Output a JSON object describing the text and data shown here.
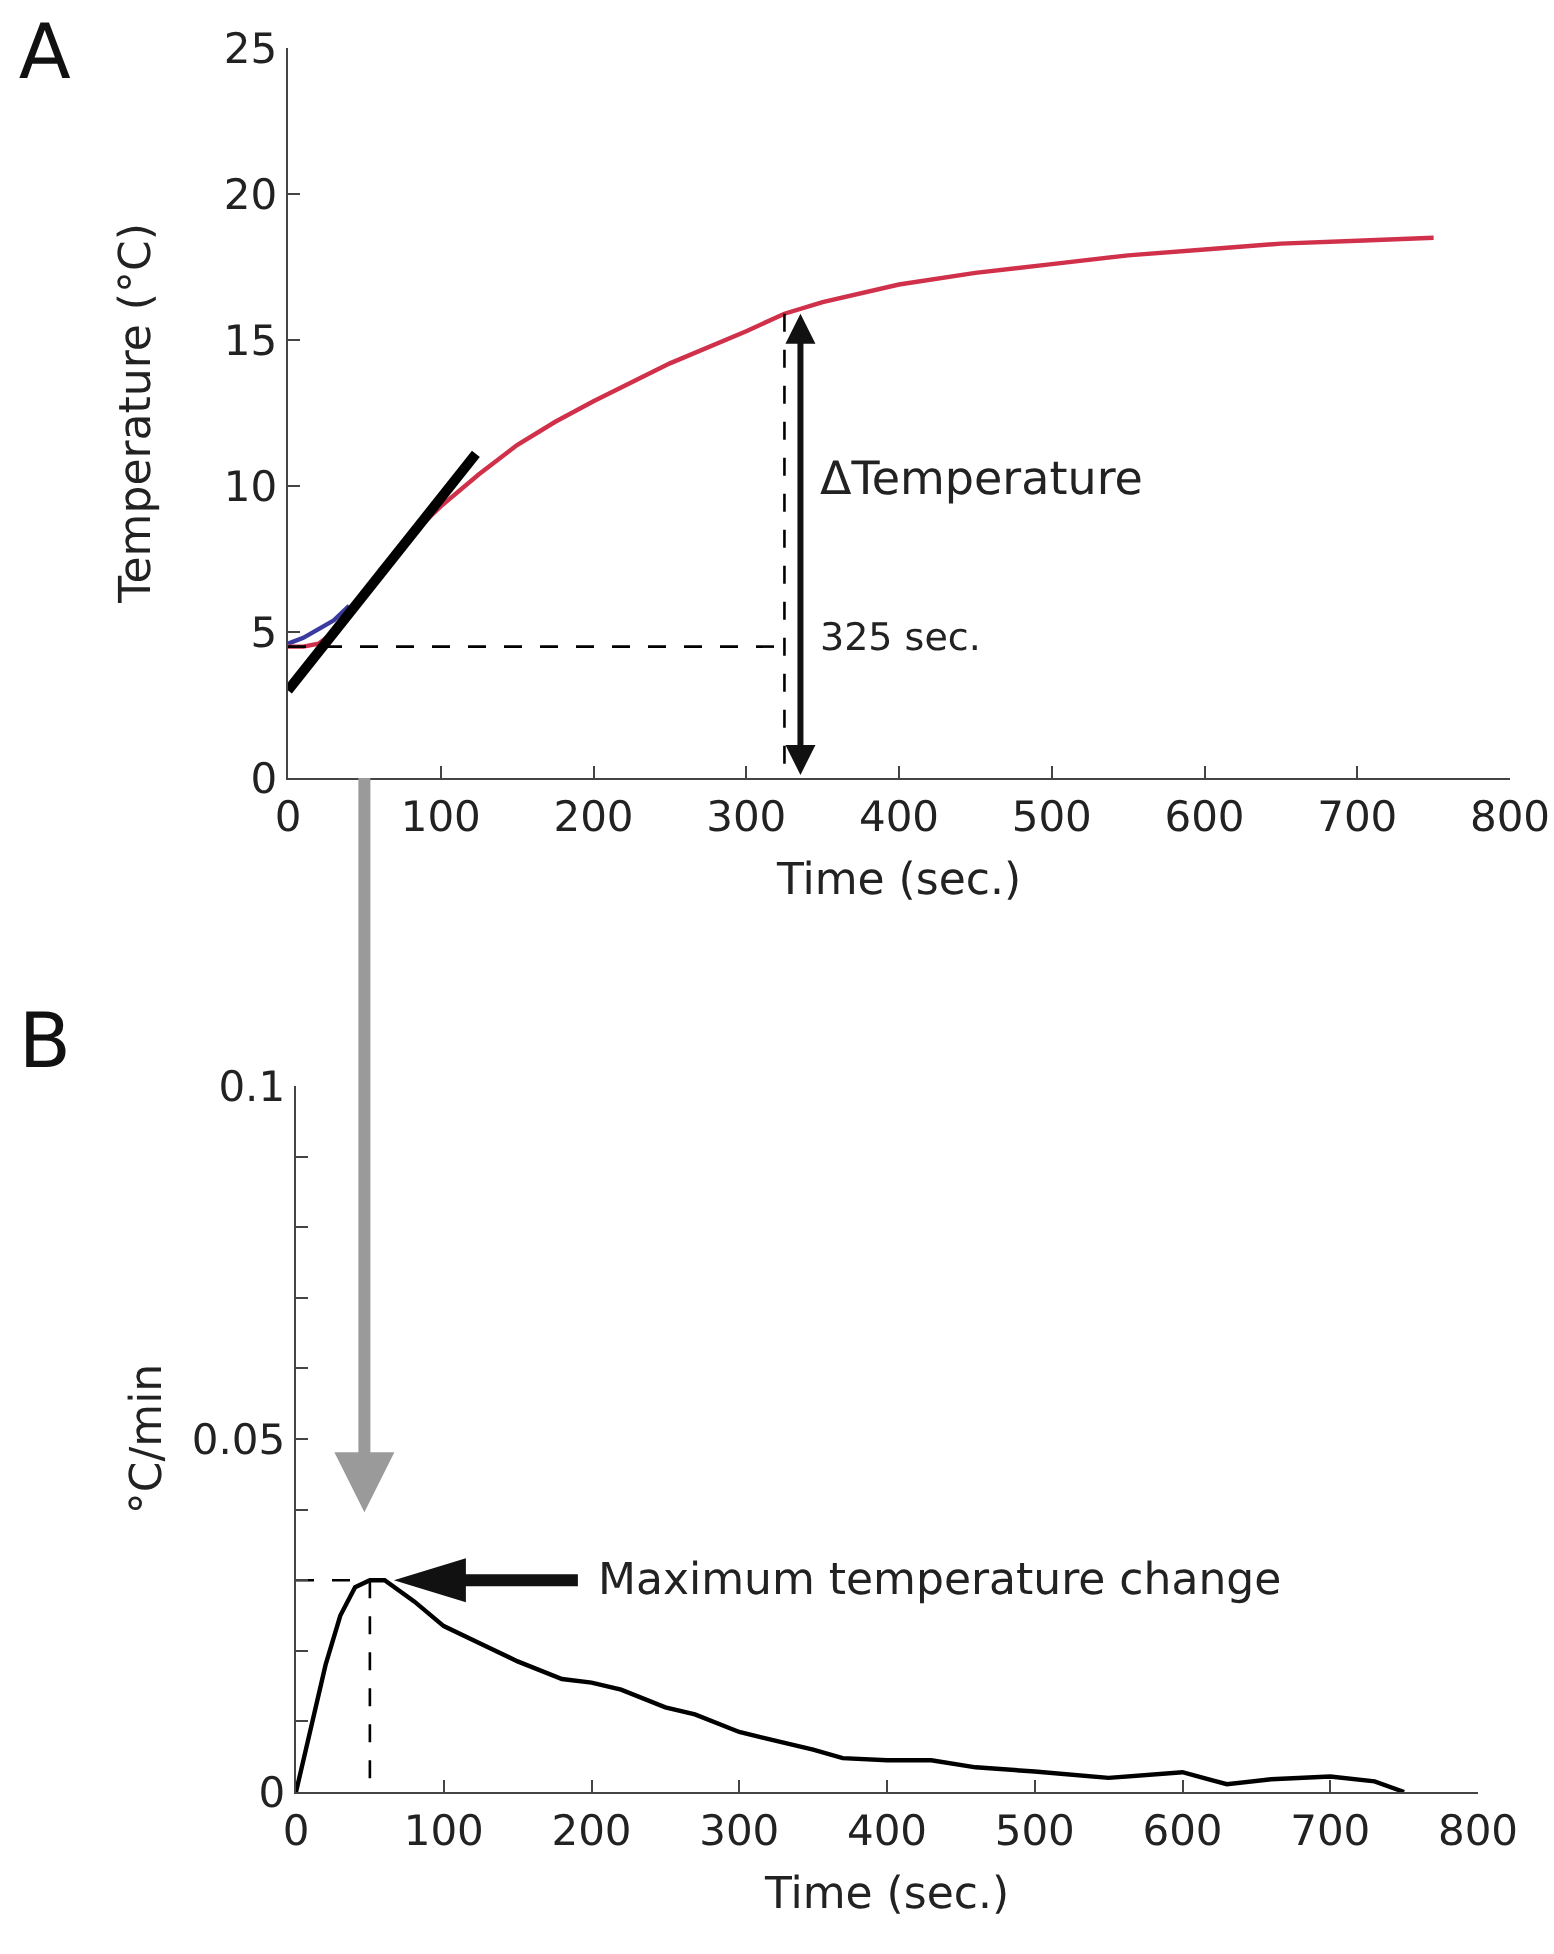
{
  "chart_data": [
    {
      "type": "line",
      "title": "A",
      "xlabel": "Time (sec.)",
      "ylabel": "Temperature (°C)",
      "xlim": [
        0,
        800
      ],
      "xticks": [
        0,
        100,
        200,
        300,
        400,
        500,
        600,
        700,
        800
      ],
      "ylim": [
        0,
        25
      ],
      "yticks": [
        0,
        5,
        10,
        15,
        20,
        25
      ],
      "grid": false,
      "marker": "none",
      "series": [
        {
          "color": "#3a3aa0",
          "x": [
            0,
            10,
            20,
            30,
            40
          ],
          "values": [
            4.6,
            4.8,
            5.1,
            5.4,
            5.9
          ]
        },
        {
          "color": "#d0304a",
          "x": [
            0,
            10,
            20,
            30,
            40,
            50,
            60,
            80,
            100,
            125,
            150,
            175,
            200,
            250,
            300,
            325,
            350,
            400,
            450,
            500,
            550,
            600,
            650,
            700,
            750
          ],
          "values": [
            4.5,
            4.5,
            4.6,
            5.0,
            5.6,
            null,
            7.1,
            8.3,
            9.3,
            10.4,
            11.4,
            12.2,
            12.9,
            14.2,
            15.3,
            15.9,
            16.3,
            16.9,
            17.3,
            17.6,
            17.9,
            18.1,
            18.3,
            18.4,
            18.5
          ]
        },
        {
          "color": "#000000",
          "x": [
            0,
            123
          ],
          "values": [
            3.0,
            11.1
          ]
        },
        {
          "color": "#000000",
          "line_style": "dashed",
          "x": [
            0,
            325
          ],
          "values": [
            4.5,
            4.5
          ]
        },
        {
          "color": "#000000",
          "line_style": "dashed",
          "x": [
            325,
            325
          ],
          "values": [
            15.9,
            0
          ]
        }
      ],
      "annotations": [
        {
          "text": "ΔTemperature",
          "x": 325,
          "y": 10.2
        },
        {
          "text": "325 sec.",
          "x": 325,
          "y": 4.8
        }
      ]
    },
    {
      "type": "line",
      "title": "B",
      "xlabel": "Time (sec.)",
      "ylabel": "°C/min",
      "xlim": [
        0,
        800
      ],
      "xticks": [
        0,
        100,
        200,
        300,
        400,
        500,
        600,
        700,
        800
      ],
      "ylim": [
        0,
        0.1
      ],
      "yticks": [
        0,
        {
          "value": 0.01,
          "label": null
        },
        {
          "value": 0.02,
          "label": null
        },
        {
          "value": 0.03,
          "label": null
        },
        {
          "value": 0.04,
          "label": null
        },
        0.05,
        {
          "value": 0.06,
          "label": null
        },
        {
          "value": 0.07,
          "label": null
        },
        {
          "value": 0.08,
          "label": null
        },
        {
          "value": 0.09,
          "label": null
        },
        0.1
      ],
      "grid": false,
      "marker": "none",
      "series": [
        {
          "color": "#000000",
          "x": [
            0,
            10,
            20,
            30,
            40,
            50,
            60,
            80,
            100,
            125,
            150,
            180,
            200,
            220,
            250,
            270,
            300,
            330,
            350,
            370,
            400,
            430,
            460,
            500,
            550,
            600,
            630,
            660,
            700,
            730,
            750
          ],
          "values": [
            0,
            0.009,
            0.018,
            0.025,
            0.029,
            0.03,
            0.03,
            0.027,
            0.0235,
            0.021,
            0.0185,
            0.016,
            0.0155,
            0.0145,
            0.012,
            0.011,
            0.0085,
            0.007,
            0.006,
            0.0048,
            0.0045,
            0.0045,
            0.0035,
            0.0029,
            0.002,
            0.0028,
            0.0011,
            0.0018,
            0.0022,
            0.0015,
            0
          ]
        },
        {
          "color": "#000000",
          "line_style": "dashed",
          "x": [
            50,
            50
          ],
          "values": [
            0.03,
            0
          ]
        },
        {
          "color": "#000000",
          "line_style": "dashed",
          "x": [
            0,
            50
          ],
          "values": [
            0.03,
            0.03
          ]
        }
      ],
      "annotations": [
        "Maximum temperature change"
      ]
    }
  ]
}
